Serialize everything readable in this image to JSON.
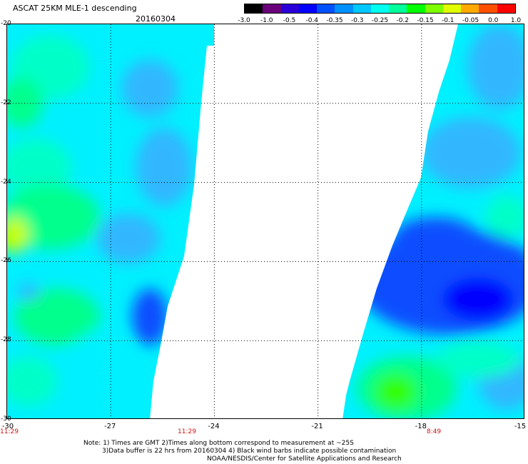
{
  "header": {
    "title": "ASCAT 25KM MLE-1 descending",
    "date": "20160304"
  },
  "colorbar": {
    "labels": [
      "-3.0",
      "-1.0",
      "-0.5",
      "-0.4",
      "-0.35",
      "-0.3",
      "-0.25",
      "-0.2",
      "-0.15",
      "-0.1",
      "-0.05",
      "0.0",
      "1.0"
    ],
    "colors": [
      "#000000",
      "#6a007a",
      "#2b00d8",
      "#0000ff",
      "#0050ff",
      "#0090ff",
      "#00c8ff",
      "#00ffee",
      "#00ff9a",
      "#00ff00",
      "#7dff00",
      "#e0ff00",
      "#ffaa00",
      "#ff5000",
      "#ff0000"
    ]
  },
  "map": {
    "lat_labels": [
      "-20",
      "-22",
      "-24",
      "-26",
      "-28",
      "-30"
    ],
    "lon_labels": [
      "-30",
      "-27",
      "-24",
      "-21",
      "-18",
      "-15"
    ],
    "bottom_times": [
      "11:29",
      "11:29",
      "8:49"
    ],
    "data_colors": {
      "cyan": "#00f0ff",
      "light_blue": "#32b7ff",
      "blue": "#0a4dff",
      "deep_blue": "#0000ff",
      "green": "#00ff8c",
      "bright_green": "#30ff00",
      "yellow_green": "#c8ff00",
      "teal": "#00ffc8"
    }
  },
  "notes": {
    "line1": "Note: 1) Times are GMT 2)Times along bottom correspond to measurement at ~25S",
    "line2": "3)Data buffer is 22 hrs from 20160304 4) Black wind barbs indicate possible contamination",
    "line3": "NOAA/NESDIS/Center for Satellite Applications and Research"
  }
}
